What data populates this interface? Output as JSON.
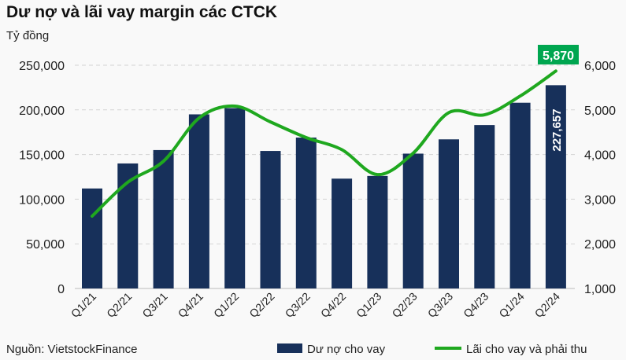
{
  "chart_data": {
    "type": "bar",
    "title": "Dư nợ và lãi vay margin các CTCK",
    "ylabel": "Tỷ đồng",
    "source": "Nguồn: VietstockFinance",
    "categories": [
      "Q1/21",
      "Q2/21",
      "Q3/21",
      "Q4/21",
      "Q1/22",
      "Q2/22",
      "Q3/22",
      "Q4/22",
      "Q1/23",
      "Q2/23",
      "Q3/23",
      "Q4/23",
      "Q1/24",
      "Q2/24"
    ],
    "series": [
      {
        "name": "Dư nợ cho vay",
        "type": "bar",
        "axis": "left",
        "color": "#17305a",
        "values": [
          112000,
          140000,
          155000,
          195000,
          202000,
          154000,
          169000,
          123000,
          126000,
          151000,
          167000,
          183000,
          208000,
          227657
        ]
      },
      {
        "name": "Lãi cho vay và phải thu",
        "type": "line",
        "axis": "right",
        "color": "#1fa81f",
        "values": [
          2620,
          3380,
          3850,
          4820,
          5085,
          4730,
          4380,
          4110,
          3550,
          4030,
          4940,
          4890,
          5310,
          5870
        ]
      }
    ],
    "ylim": [
      0,
      250000
    ],
    "y2lim": [
      1000,
      6000
    ],
    "yticks": [
      "0",
      "50,000",
      "100,000",
      "150,000",
      "200,000",
      "250,000"
    ],
    "y2ticks": [
      "1,000",
      "2,000",
      "3,000",
      "4,000",
      "5,000",
      "6,000"
    ],
    "annotations": {
      "bar_last": "227,657",
      "line_last": "5,870"
    },
    "label_color": "#00a650",
    "grid": true,
    "legend": "bottom"
  }
}
